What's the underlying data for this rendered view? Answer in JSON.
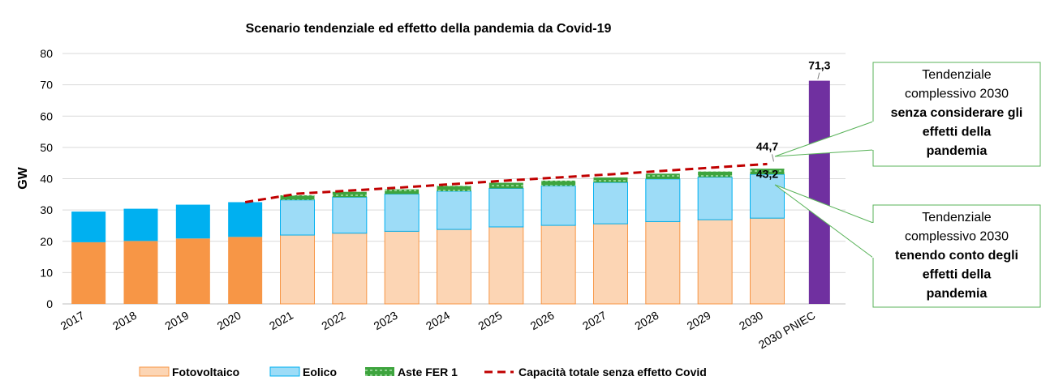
{
  "chart_data": {
    "type": "bar",
    "title": "Scenario tendenziale ed effetto della pandemia da Covid-19",
    "ylabel": "GW",
    "xlabel": "",
    "ylim": [
      0,
      80
    ],
    "yticks": [
      0,
      10,
      20,
      30,
      40,
      50,
      60,
      70,
      80
    ],
    "grid": true,
    "legend_position": "bottom",
    "categories": [
      "2017",
      "2018",
      "2019",
      "2020",
      "2021",
      "2022",
      "2023",
      "2024",
      "2025",
      "2026",
      "2027",
      "2028",
      "2029",
      "2030",
      "2030 PNIEC"
    ],
    "series": [
      {
        "name": "Fotovoltaico",
        "color": "#f79646",
        "projected_color": "#fcd5b4",
        "values": [
          19.7,
          20.1,
          20.9,
          21.4,
          22.0,
          22.6,
          23.2,
          23.8,
          24.6,
          25.1,
          25.6,
          26.3,
          26.9,
          27.4,
          null
        ]
      },
      {
        "name": "Eolico",
        "color": "#00b0f0",
        "projected_color": "#9ddcf7",
        "values": [
          9.8,
          10.3,
          10.8,
          11.1,
          11.2,
          11.5,
          11.9,
          12.2,
          12.3,
          12.6,
          13.2,
          13.6,
          13.6,
          14.0,
          null
        ]
      },
      {
        "name": "Aste FER 1",
        "color": "#3ea43e",
        "values": [
          null,
          null,
          null,
          null,
          1.5,
          1.7,
          1.5,
          1.7,
          1.8,
          1.7,
          1.6,
          1.7,
          1.8,
          1.8,
          null
        ]
      },
      {
        "name": "2030 PNIEC",
        "color": "#7030a0",
        "values": [
          null,
          null,
          null,
          null,
          null,
          null,
          null,
          null,
          null,
          null,
          null,
          null,
          null,
          null,
          71.3
        ]
      },
      {
        "name": "Capacità totale senza effetto Covid",
        "type": "line",
        "color": "#c00000",
        "values": [
          null,
          null,
          null,
          32.5,
          35.2,
          36.2,
          37.2,
          38.3,
          39.4,
          40.4,
          41.4,
          42.5,
          43.6,
          44.7,
          null
        ]
      }
    ],
    "data_labels": [
      {
        "category": "2030 PNIEC",
        "text": "71,3"
      },
      {
        "category": "2030",
        "text": "44,7"
      },
      {
        "category": "2030",
        "text": "43,2"
      }
    ],
    "legend": [
      "Fotovoltaico",
      "Eolico",
      "Aste FER 1",
      "Capacità totale senza effetto Covid"
    ],
    "annotations": [
      {
        "lines": [
          "Tendenziale",
          "complessivo 2030"
        ],
        "bold_lines": [
          "senza considerare gli",
          "effetti della",
          "pandemia"
        ]
      },
      {
        "lines": [
          "Tendenziale",
          "complessivo 2030"
        ],
        "bold_lines": [
          "tenendo conto degli",
          "effetti della",
          "pandemia"
        ]
      }
    ]
  }
}
